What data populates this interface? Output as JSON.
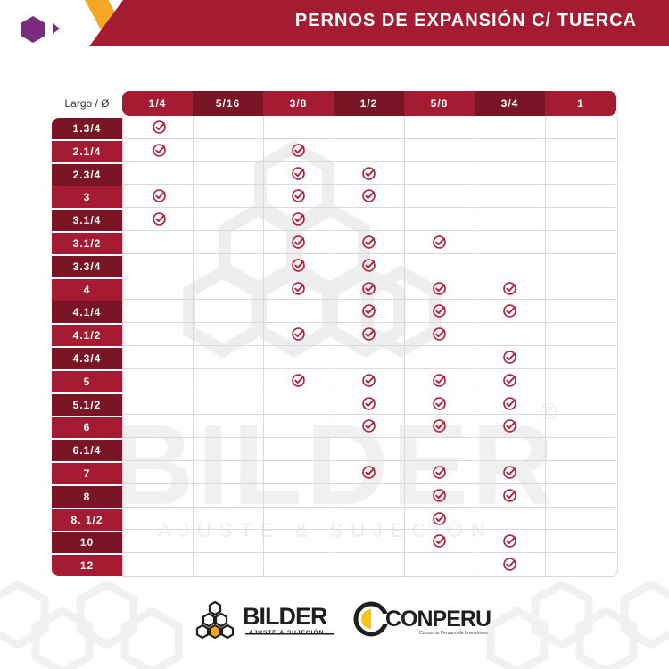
{
  "header": {
    "title": "PERNOS DE EXPANSIÓN C/ TUERCA"
  },
  "table": {
    "corner_label": "Largo / Ø",
    "columns": [
      "1/4",
      "5/16",
      "3/8",
      "1/2",
      "5/8",
      "3/4",
      "1"
    ],
    "rows": [
      {
        "label": "1.3/4",
        "checks": [
          0
        ]
      },
      {
        "label": "2.1/4",
        "checks": [
          0,
          2
        ]
      },
      {
        "label": "2.3/4",
        "checks": [
          2,
          3
        ]
      },
      {
        "label": "3",
        "checks": [
          0,
          2,
          3
        ]
      },
      {
        "label": "3.1/4",
        "checks": [
          0,
          2
        ]
      },
      {
        "label": "3.1/2",
        "checks": [
          2,
          3,
          4
        ]
      },
      {
        "label": "3.3/4",
        "checks": [
          2,
          3
        ]
      },
      {
        "label": "4",
        "checks": [
          2,
          3,
          4,
          5
        ]
      },
      {
        "label": "4.1/4",
        "checks": [
          3,
          4,
          5
        ]
      },
      {
        "label": "4.1/2",
        "checks": [
          2,
          3,
          4
        ]
      },
      {
        "label": "4.3/4",
        "checks": [
          5
        ]
      },
      {
        "label": "5",
        "checks": [
          2,
          3,
          4,
          5
        ]
      },
      {
        "label": "5.1/2",
        "checks": [
          3,
          4,
          5
        ]
      },
      {
        "label": "6",
        "checks": [
          3,
          4,
          5
        ]
      },
      {
        "label": "6.1/4",
        "checks": []
      },
      {
        "label": "7",
        "checks": [
          3,
          4,
          5
        ]
      },
      {
        "label": "8",
        "checks": [
          4,
          5
        ]
      },
      {
        "label": "8. 1/2",
        "checks": [
          4
        ]
      },
      {
        "label": "10",
        "checks": [
          4,
          5
        ]
      },
      {
        "label": "12",
        "checks": [
          5
        ]
      }
    ]
  },
  "watermark": {
    "brand": "BILDER",
    "registered": "®",
    "tagline": "AJUSTE & SUJECIÓN"
  },
  "footer": {
    "bilder_name": "BILDER",
    "bilder_tagline": "AJUSTE & SUJECIÓN",
    "conperu_name": "CONPERU",
    "conperu_tagline": "Consorcio Peruano de Inversiones"
  },
  "colors": {
    "red": "#a51b32",
    "dark_red": "#7a1526",
    "check": "#b0243b",
    "accent_orange": "#f5a623",
    "purple": "#7b2a7d"
  },
  "icons": {
    "check": "check-circle-icon",
    "header_logo": "hexagon-icon",
    "header_arrow": "play-icon"
  }
}
